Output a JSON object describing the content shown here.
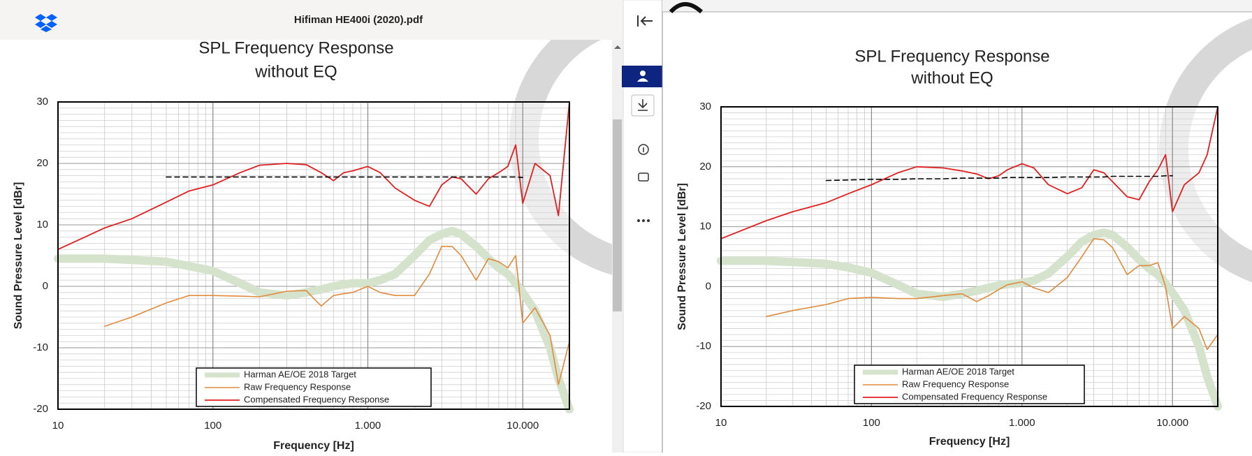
{
  "header": {
    "filename": "Hifiman HE400i (2020).pdf"
  },
  "chart_data": [
    {
      "type": "line",
      "title": "SPL Frequency Response",
      "subtitle": "without EQ",
      "x_label": "Frequency [Hz]",
      "y_label": "Sound Pressure Level [dBr]",
      "xscale": "log",
      "grid": true,
      "legend": "lower center",
      "xlim": [
        10,
        20000
      ],
      "xticks": [
        10,
        100,
        {
          "value": 1000,
          "label": "1.000"
        },
        {
          "value": 10000,
          "label": "10.000"
        }
      ],
      "ylim": [
        -20,
        30
      ],
      "yticks": [
        -20,
        -10,
        0,
        10,
        20,
        30
      ],
      "x": [
        10,
        20,
        30,
        50,
        70,
        100,
        150,
        200,
        300,
        400,
        500,
        600,
        700,
        800,
        1000,
        1200,
        1500,
        2000,
        2500,
        3000,
        3500,
        4000,
        5000,
        6000,
        7000,
        8000,
        9000,
        10000,
        12000,
        15000,
        17000,
        20000
      ],
      "series": [
        {
          "name": "Harman AE/OE 2018 Target",
          "color": "#d5e3cc",
          "values": [
            4.5,
            4.5,
            4.3,
            4,
            3.3,
            2.5,
            0.5,
            -1,
            -1.5,
            -1,
            -0.5,
            0,
            0.3,
            0.5,
            0.5,
            1,
            2,
            5,
            7.5,
            8.5,
            9,
            8.5,
            6.5,
            4.5,
            3,
            2,
            0.5,
            -1,
            -4,
            -10,
            -15,
            -20
          ]
        },
        {
          "name": "Raw Frequency Response",
          "color": "#e08a3c",
          "values": [
            null,
            -6.5,
            -5,
            -2.7,
            -1.5,
            -1.5,
            -1.6,
            -1.7,
            -0.8,
            -0.7,
            -3.2,
            -1.5,
            -1.2,
            -1,
            0,
            -1,
            -1.5,
            -1.5,
            2,
            6.5,
            6.5,
            5,
            1,
            4.5,
            4,
            3,
            5,
            -6,
            -3.5,
            -8,
            -16,
            -9
          ]
        },
        {
          "name": "Compensated Frequency Response",
          "color": "#e02020",
          "values": [
            6,
            9.5,
            11,
            13.7,
            15.5,
            16.5,
            18.5,
            19.7,
            20,
            19.8,
            18.5,
            17.2,
            18.5,
            18.8,
            19.5,
            18.5,
            16,
            14,
            13,
            16.5,
            17.8,
            17.5,
            15,
            17.5,
            18.5,
            19.5,
            23,
            13.5,
            20,
            18,
            11.5,
            30
          ]
        },
        {
          "color": "#000000",
          "values": [
            null,
            null,
            null,
            17.8,
            17.8,
            17.8,
            17.8,
            17.8,
            17.8,
            17.8,
            17.8,
            17.8,
            17.8,
            17.8,
            17.8,
            17.8,
            17.8,
            17.8,
            17.8,
            17.8,
            17.8,
            17.8,
            17.8,
            17.8,
            17.8,
            17.8,
            17.8,
            17.7,
            null,
            null,
            null,
            null
          ]
        }
      ]
    },
    {
      "type": "line",
      "title": "SPL Frequency Response",
      "subtitle": "without EQ",
      "x_label": "Frequency [Hz]",
      "y_label": "Sound Pressure Level [dBr]",
      "xscale": "log",
      "grid": true,
      "legend": "lower center",
      "xlim": [
        10,
        20000
      ],
      "xticks": [
        10,
        100,
        {
          "value": 1000,
          "label": "1.000"
        },
        {
          "value": 10000,
          "label": "10.000"
        }
      ],
      "ylim": [
        -20,
        30
      ],
      "yticks": [
        -20,
        -10,
        0,
        10,
        20,
        30
      ],
      "x": [
        10,
        20,
        30,
        50,
        70,
        100,
        150,
        200,
        300,
        400,
        500,
        600,
        700,
        800,
        1000,
        1200,
        1500,
        2000,
        2500,
        3000,
        3500,
        4000,
        5000,
        6000,
        7000,
        8000,
        9000,
        10000,
        12000,
        15000,
        17000,
        20000
      ],
      "series": [
        {
          "name": "Harman AE/OE 2018 Target",
          "color": "#d5e3cc",
          "values": [
            4.3,
            4.3,
            4.1,
            3.8,
            3.2,
            2.3,
            0.3,
            -1.2,
            -1.7,
            -1.2,
            -0.7,
            -0.2,
            0.2,
            0.4,
            0.6,
            1,
            2.2,
            5,
            7.5,
            8.6,
            9,
            8.6,
            6.6,
            4.5,
            3,
            2,
            0.5,
            -1,
            -4,
            -10,
            -15,
            -20
          ]
        },
        {
          "name": "Raw Frequency Response",
          "color": "#e08a3c",
          "values": [
            null,
            -5,
            -4,
            -3,
            -2,
            -1.8,
            -2,
            -2,
            -1.5,
            -1.2,
            -2.5,
            -1.5,
            -0.5,
            0.3,
            0.8,
            -0.2,
            -1,
            1.5,
            5,
            8,
            7.8,
            6.5,
            2,
            3.5,
            3.5,
            4,
            0,
            -7,
            -5,
            -7,
            -10.5,
            -8
          ]
        },
        {
          "name": "Compensated Frequency Response",
          "color": "#e02020",
          "values": [
            8,
            11,
            12.5,
            14,
            15.5,
            17,
            19,
            20,
            19.8,
            19.3,
            18.8,
            18,
            18.5,
            19.5,
            20.5,
            19.8,
            17,
            15.5,
            16.5,
            19.5,
            19,
            17.5,
            15,
            14.5,
            17.5,
            19.5,
            22,
            12.5,
            17,
            19,
            22,
            30
          ]
        },
        {
          "color": "#000000",
          "values": [
            null,
            null,
            null,
            17.7,
            17.8,
            17.9,
            17.9,
            18,
            18,
            18.1,
            18.1,
            18.1,
            18.1,
            18.2,
            18.2,
            18.2,
            18.2,
            18.3,
            18.3,
            18.3,
            18.3,
            18.4,
            18.4,
            18.4,
            18.4,
            18.4,
            18.5,
            18.5,
            null,
            null,
            null,
            null
          ]
        }
      ]
    }
  ]
}
